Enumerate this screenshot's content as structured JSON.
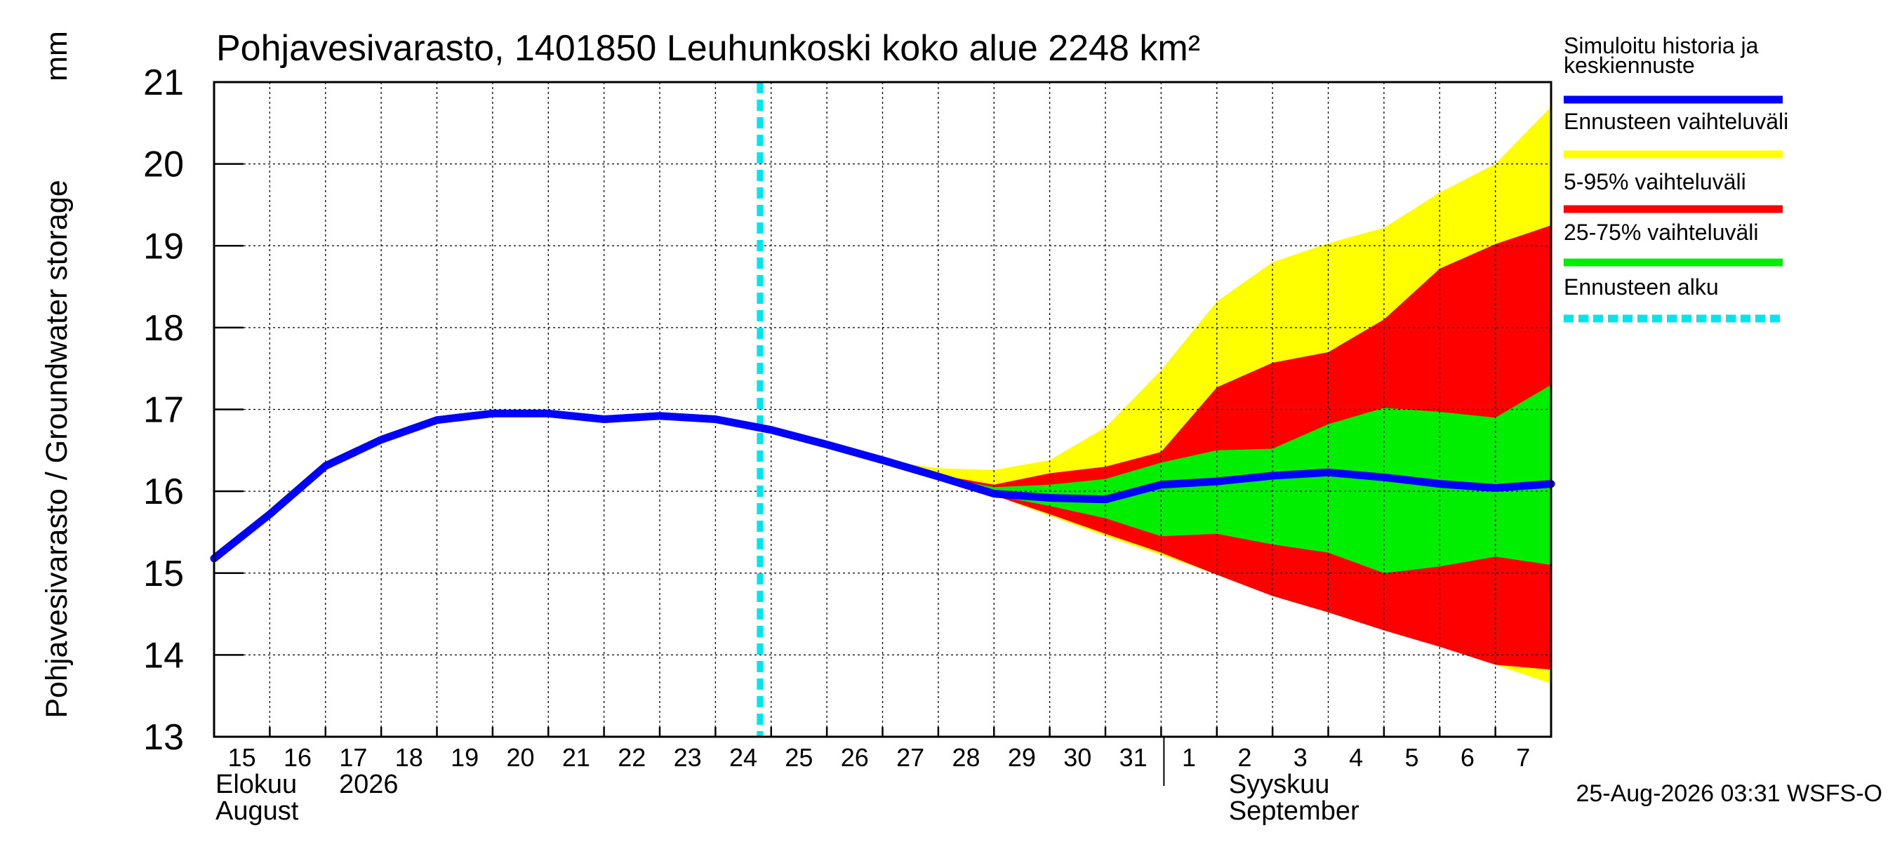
{
  "chart_data": {
    "type": "area",
    "title": "Pohjavesivarasto, 1401850 Leuhunkoski koko alue 2248 km²",
    "ylabel": "Pohjavesivarasto / Groundwater storage",
    "yunit": "mm",
    "ylim": [
      13,
      21
    ],
    "yticks": [
      13,
      14,
      15,
      16,
      17,
      18,
      19,
      20,
      21
    ],
    "grid": true,
    "x_start": "2026-08-15",
    "x_end": "2026-09-08",
    "x_day_labels": [
      "15",
      "16",
      "17",
      "18",
      "19",
      "20",
      "21",
      "22",
      "23",
      "24",
      "25",
      "26",
      "27",
      "28",
      "29",
      "30",
      "31",
      "1",
      "2",
      "3",
      "4",
      "5",
      "6",
      "7"
    ],
    "month_labels": [
      {
        "fi": "Elokuu",
        "en": "August",
        "year": "2026"
      },
      {
        "fi": "Syyskuu",
        "en": "September"
      }
    ],
    "forecast_start": "2026-08-24",
    "x": [
      "2026-08-15",
      "2026-08-16",
      "2026-08-17",
      "2026-08-18",
      "2026-08-19",
      "2026-08-20",
      "2026-08-21",
      "2026-08-22",
      "2026-08-23",
      "2026-08-24",
      "2026-08-25",
      "2026-08-26",
      "2026-08-27",
      "2026-08-28",
      "2026-08-29",
      "2026-08-30",
      "2026-08-31",
      "2026-09-01",
      "2026-09-02",
      "2026-09-03",
      "2026-09-04",
      "2026-09-05",
      "2026-09-06",
      "2026-09-07",
      "2026-09-08"
    ],
    "series": [
      {
        "name": "Ennusteen vaihteluväli",
        "kind": "band",
        "color": "#ffff00",
        "x_from": 12,
        "lower": [
          16.38,
          16.15,
          15.95,
          15.7,
          15.45,
          15.22,
          14.98,
          14.72,
          14.52,
          14.3,
          14.1,
          13.88,
          13.65
        ],
        "upper": [
          16.38,
          16.28,
          16.26,
          16.38,
          16.78,
          17.48,
          18.32,
          18.8,
          19.03,
          19.22,
          19.65,
          20.0,
          20.7
        ]
      },
      {
        "name": "5-95% vaihteluväli",
        "kind": "band",
        "color": "#ff0000",
        "x_from": 12,
        "lower": [
          16.38,
          16.15,
          15.95,
          15.72,
          15.48,
          15.25,
          14.98,
          14.72,
          14.52,
          14.3,
          14.1,
          13.88,
          13.82
        ],
        "upper": [
          16.38,
          16.2,
          16.08,
          16.22,
          16.3,
          16.48,
          17.27,
          17.57,
          17.7,
          18.1,
          18.72,
          19.02,
          19.25
        ]
      },
      {
        "name": "25-75% vaihteluväli",
        "kind": "band",
        "color": "#00ee00",
        "x_from": 12,
        "lower": [
          16.38,
          16.18,
          15.95,
          15.82,
          15.67,
          15.45,
          15.48,
          15.35,
          15.25,
          15.0,
          15.08,
          15.2,
          15.1
        ],
        "upper": [
          16.38,
          16.18,
          16.05,
          16.08,
          16.15,
          16.35,
          16.5,
          16.52,
          16.82,
          17.02,
          16.97,
          16.9,
          17.3
        ]
      },
      {
        "name": "Simuloitu historia ja keskiennuste",
        "kind": "line",
        "color": "#0000ff",
        "values": [
          15.18,
          15.72,
          16.31,
          16.63,
          16.87,
          16.95,
          16.95,
          16.88,
          16.92,
          16.88,
          16.75,
          16.57,
          16.38,
          16.18,
          15.97,
          15.92,
          15.9,
          16.08,
          16.12,
          16.19,
          16.23,
          16.17,
          16.09,
          16.04,
          16.09
        ]
      },
      {
        "name": "Ennusteen alku",
        "kind": "vline",
        "color": "#00e5ee"
      }
    ],
    "legend": {
      "placement": "right",
      "entries": [
        {
          "label_lines": [
            "Simuloitu historia ja",
            "keskiennuste"
          ],
          "color": "#0000ff",
          "style": "solid"
        },
        {
          "label_lines": [
            "Ennusteen vaihteluväli"
          ],
          "color": "#ffff00",
          "style": "solid"
        },
        {
          "label_lines": [
            "5-95% vaihteluväli"
          ],
          "color": "#ff0000",
          "style": "solid"
        },
        {
          "label_lines": [
            "25-75% vaihteluväli"
          ],
          "color": "#00ee00",
          "style": "solid"
        },
        {
          "label_lines": [
            "Ennusteen alku"
          ],
          "color": "#00e5ee",
          "style": "dashed"
        }
      ]
    },
    "footer": "25-Aug-2026 03:31 WSFS-O"
  }
}
